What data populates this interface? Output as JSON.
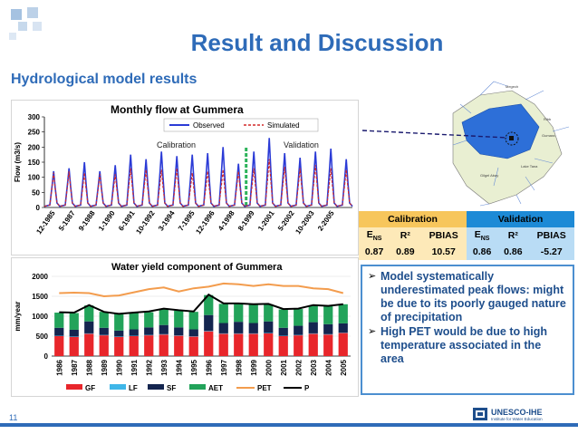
{
  "slide": {
    "title": "Result and Discussion",
    "subtitle": "Hydrological model results",
    "page_number": "11"
  },
  "chart1": {
    "title": "Monthly flow at Gummera",
    "legend": [
      "Observed",
      "Simulated"
    ],
    "labels": {
      "calibration": "Calibration",
      "validation": "Validation"
    }
  },
  "chart2": {
    "title": "Water yield component of Gummera"
  },
  "table": {
    "calibration_label": "Calibration",
    "validation_label": "Validation",
    "headers": [
      "E",
      "R²",
      "PBIAS",
      "E",
      "R²",
      "PBIAS"
    ],
    "ens_sub": "NS",
    "values": [
      "0.87",
      "0.89",
      "10.57",
      "0.86",
      "0.86",
      "-5.27"
    ]
  },
  "bullets": [
    "Model systematically underestimated peak flows: might be due to its poorly gauged nature of precipitation",
    "High PET would be due to high temperature associated in the area"
  ],
  "logo": {
    "name": "UNESCO-IHE",
    "tagline": "Institute for Water Education"
  },
  "chart_data": [
    {
      "type": "line",
      "title": "Monthly flow at Gummera",
      "xlabel": "",
      "ylabel": "Flow (m3/s)",
      "ylim": [
        0,
        300
      ],
      "yticks": [
        0,
        50,
        100,
        150,
        200,
        250,
        300
      ],
      "x_tick_labels": [
        "12-1985",
        "5-1987",
        "9-1988",
        "1-1990",
        "6-1991",
        "10-1992",
        "3-1994",
        "7-1995",
        "12-1996",
        "4-1998",
        "8-1999",
        "1-2001",
        "5-2002",
        "10-2003",
        "2-2005"
      ],
      "series": [
        {
          "name": "Observed",
          "color": "#2b3bd6",
          "peaks": [
            120,
            130,
            150,
            120,
            140,
            175,
            160,
            185,
            170,
            175,
            180,
            200,
            145,
            185,
            230,
            180,
            165,
            185,
            195,
            160
          ]
        },
        {
          "name": "Simulated",
          "color": "#d42a2a",
          "peaks": [
            115,
            120,
            115,
            110,
            110,
            130,
            125,
            125,
            130,
            115,
            120,
            125,
            120,
            130,
            160,
            135,
            130,
            140,
            130,
            125
          ]
        }
      ],
      "annotations": [
        "Calibration",
        "Validation"
      ]
    },
    {
      "type": "bar",
      "title": "Water yield component of Gummera",
      "ylabel": "mm/year",
      "ylim": [
        0,
        2000
      ],
      "yticks": [
        0,
        500,
        1000,
        1500,
        2000
      ],
      "categories": [
        "1986",
        "1987",
        "1988",
        "1989",
        "1990",
        "1991",
        "1992",
        "1993",
        "1994",
        "1995",
        "1996",
        "1997",
        "1998",
        "1999",
        "2000",
        "2001",
        "2002",
        "2003",
        "2004",
        "2005"
      ],
      "series": [
        {
          "name": "GF",
          "color": "#e8262b",
          "values": [
            500,
            480,
            560,
            520,
            480,
            500,
            520,
            540,
            510,
            490,
            620,
            560,
            560,
            560,
            570,
            500,
            520,
            560,
            540,
            580
          ]
        },
        {
          "name": "LF",
          "color": "#3fb6e8",
          "values": [
            10,
            10,
            10,
            10,
            10,
            10,
            10,
            10,
            10,
            10,
            10,
            10,
            10,
            10,
            10,
            10,
            10,
            10,
            10,
            10
          ]
        },
        {
          "name": "SF",
          "color": "#14254f",
          "values": [
            200,
            170,
            300,
            180,
            150,
            160,
            190,
            230,
            200,
            170,
            400,
            260,
            290,
            260,
            290,
            200,
            230,
            280,
            250,
            230
          ]
        },
        {
          "name": "AET",
          "color": "#22a35a",
          "values": [
            380,
            420,
            400,
            400,
            420,
            420,
            380,
            400,
            420,
            440,
            500,
            480,
            450,
            460,
            430,
            460,
            420,
            420,
            450,
            480
          ]
        },
        {
          "name": "PET",
          "color": "#f39c4d",
          "values": [
            1580,
            1590,
            1580,
            1500,
            1520,
            1600,
            1680,
            1720,
            1620,
            1700,
            1740,
            1820,
            1800,
            1760,
            1800,
            1760,
            1760,
            1700,
            1680,
            1580
          ]
        },
        {
          "name": "P",
          "color": "#000000",
          "values": [
            1100,
            1090,
            1280,
            1110,
            1060,
            1090,
            1120,
            1190,
            1150,
            1120,
            1540,
            1320,
            1320,
            1300,
            1310,
            1180,
            1190,
            1280,
            1260,
            1300
          ]
        }
      ]
    }
  ]
}
